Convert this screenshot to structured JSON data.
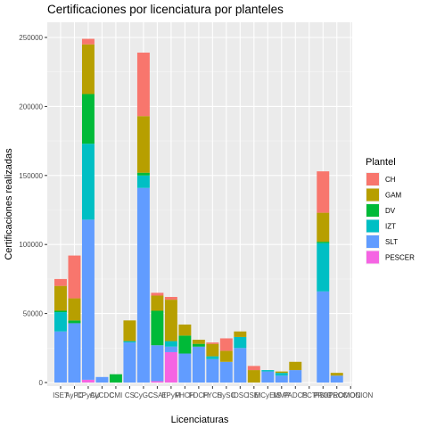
{
  "chart_data": {
    "type": "bar",
    "stacked": true,
    "title": "Certificaciones por licenciatura por planteles",
    "xlabel": "Licenciaturas",
    "ylabel": "Certificaciones realizadas",
    "ylim": [
      0,
      255000
    ],
    "yticks": [
      0,
      50000,
      100000,
      150000,
      200000,
      250000
    ],
    "ytick_labels": [
      "0",
      "50000",
      "100000",
      "150000",
      "200000",
      "250000"
    ],
    "grid": true,
    "legend": {
      "title": "Plantel",
      "position": "right"
    },
    "categories": [
      "ISET",
      "AyPC",
      "CPyAU",
      "CyCDC",
      "CMI",
      "CS",
      "CyGC",
      "CSAT",
      "EPyM",
      "FHCH",
      "FDCH",
      "FYCS",
      "HySC",
      "IDSC",
      "ISEI",
      "MCyEIS",
      "MMP",
      "PADCS",
      "PCT",
      "PSIC",
      "PROTECCION",
      "PROMOCION"
    ],
    "tick_labels": [
      "ISET",
      "AyPC",
      "CPyAU",
      "CyCDC",
      "CMI",
      "CS",
      "CyGC",
      "CSAT",
      "EPyM",
      "FHCH",
      "FDCH",
      "FYCS",
      "HySC",
      "IDSC",
      "ISEI",
      "MCyEIS",
      "MMP",
      "PADCS",
      "PCT",
      "PSIC",
      "PROTECCION",
      "PROMOCION"
    ],
    "series": [
      {
        "name": "CH",
        "color": "#F8766D",
        "values": [
          5000,
          31000,
          4000,
          0,
          0,
          0,
          46000,
          2000,
          2000,
          0,
          0,
          1000,
          9000,
          0,
          3000,
          0,
          0,
          0,
          0,
          30000,
          0,
          0
        ]
      },
      {
        "name": "GAM",
        "color": "#B79F00",
        "values": [
          18000,
          16000,
          36000,
          0,
          0,
          15000,
          41000,
          11000,
          30000,
          8000,
          3000,
          9000,
          8000,
          4000,
          9000,
          0,
          1000,
          6000,
          0,
          21000,
          2000,
          0
        ]
      },
      {
        "name": "DV",
        "color": "#00BA38",
        "values": [
          1000,
          2000,
          36000,
          0,
          6000,
          0,
          2000,
          25000,
          0,
          13000,
          2000,
          0,
          0,
          0,
          0,
          0,
          0,
          0,
          0,
          1000,
          0,
          0
        ]
      },
      {
        "name": "IZT",
        "color": "#00BFC4",
        "values": [
          14000,
          0,
          55000,
          0,
          0,
          1000,
          9000,
          0,
          4000,
          0,
          0,
          2000,
          0,
          8000,
          0,
          1000,
          2000,
          0,
          0,
          35000,
          0,
          0
        ]
      },
      {
        "name": "SLT",
        "color": "#619CFF",
        "values": [
          37000,
          43000,
          116000,
          4000,
          0,
          29000,
          141000,
          26000,
          4000,
          21000,
          26000,
          17000,
          15000,
          25000,
          0,
          8000,
          5000,
          9000,
          0,
          66000,
          5000,
          0
        ]
      },
      {
        "name": "PESCER",
        "color": "#F564E3",
        "values": [
          0,
          0,
          2000,
          0,
          0,
          0,
          0,
          1000,
          22000,
          0,
          0,
          0,
          0,
          0,
          0,
          0,
          0,
          0,
          0,
          0,
          0,
          0
        ]
      }
    ]
  }
}
